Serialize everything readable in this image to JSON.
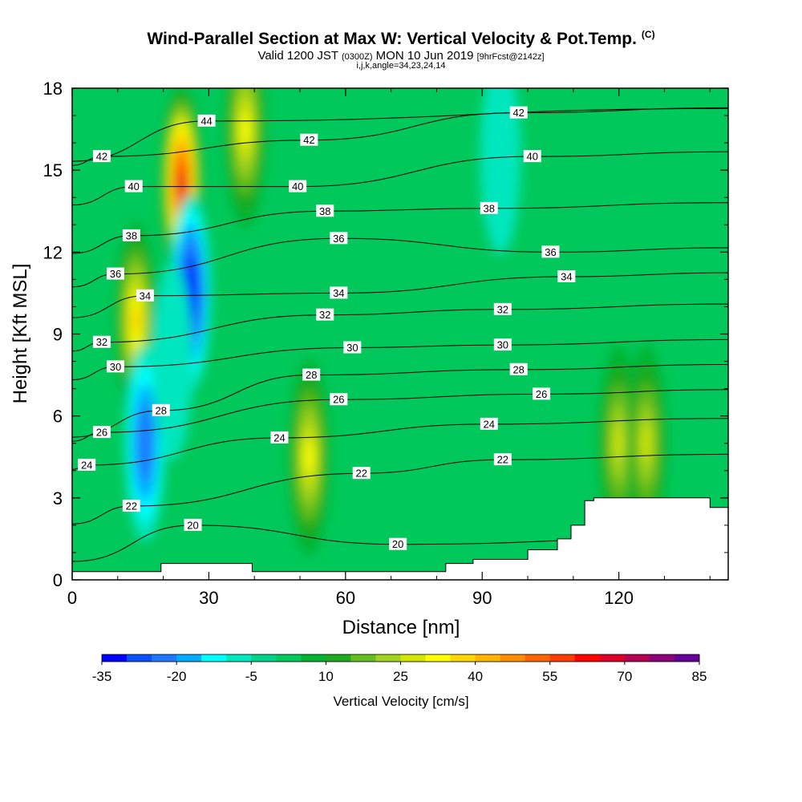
{
  "header": {
    "title": "Wind-Parallel Section at Max W: Vertical Velocity & Pot.Temp.",
    "copyright": "(C)",
    "valid_prefix": "Valid 1200 JST",
    "valid_z": "(0300Z)",
    "valid_date": "MON 10 Jun 2019",
    "forecast": "[9hrFcst@2142z]",
    "indices": "i,j,k,angle=34,23,24,14"
  },
  "chart_data": {
    "type": "heatmap",
    "xlabel": "Distance [nm]",
    "ylabel": "Height [Kft MSL]",
    "xlim": [
      0,
      144
    ],
    "ylim": [
      0,
      18
    ],
    "x_ticks": [
      "0",
      "30",
      "60",
      "90",
      "120"
    ],
    "y_ticks": [
      "0",
      "3",
      "6",
      "9",
      "12",
      "15",
      "18"
    ],
    "colorbar": {
      "label": "Vertical Velocity [cm/s]",
      "tick_labels": [
        "-35",
        "-20",
        "-5",
        "10",
        "25",
        "40",
        "55",
        "70",
        "85"
      ],
      "levels": [
        -35,
        -30,
        -25,
        -20,
        -15,
        -10,
        -5,
        0,
        5,
        10,
        15,
        20,
        25,
        30,
        35,
        40,
        45,
        50,
        55,
        60,
        65,
        70,
        75,
        80,
        85
      ],
      "colors": [
        "#0000ff",
        "#0a50ff",
        "#1e78ff",
        "#00aaff",
        "#00ffff",
        "#00e6be",
        "#00d28c",
        "#00c85a",
        "#00b432",
        "#1eaa1e",
        "#64be1e",
        "#a0d21e",
        "#d2e600",
        "#ffff00",
        "#ffd700",
        "#ffb400",
        "#ff8c00",
        "#ff6400",
        "#ff3c00",
        "#ff0000",
        "#dc0028",
        "#b40050",
        "#8c0078",
        "#640096"
      ]
    },
    "vertical_velocity_features": [
      {
        "kind": "updraft",
        "x": 24,
        "y": 14.5,
        "peak": 65
      },
      {
        "kind": "updraft",
        "x": 14,
        "y": 9.5,
        "peak": 35
      },
      {
        "kind": "updraft",
        "x": 38,
        "y": 16.5,
        "peak": 30
      },
      {
        "kind": "updraft",
        "x": 52,
        "y": 4.5,
        "peak": 30
      },
      {
        "kind": "updraft",
        "x": 120,
        "y": 5,
        "peak": 25
      },
      {
        "kind": "updraft",
        "x": 126,
        "y": 5,
        "peak": 25
      },
      {
        "kind": "downdraft",
        "x": 26,
        "y": 10.5,
        "peak": -35
      },
      {
        "kind": "downdraft",
        "x": 16,
        "y": 5,
        "peak": -25
      },
      {
        "kind": "downdraft",
        "x": 22,
        "y": 8,
        "peak": -10
      },
      {
        "kind": "downdraft",
        "x": 94,
        "y": 15.5,
        "peak": -10
      }
    ],
    "terrain": [
      [
        0,
        0.3
      ],
      [
        19.5,
        0.3
      ],
      [
        19.5,
        0.6
      ],
      [
        39.5,
        0.6
      ],
      [
        39.5,
        0.3
      ],
      [
        82,
        0.3
      ],
      [
        82,
        0.6
      ],
      [
        88,
        0.6
      ],
      [
        88,
        0.75
      ],
      [
        100,
        0.75
      ],
      [
        100,
        1.1
      ],
      [
        106.5,
        1.1
      ],
      [
        106.5,
        1.5
      ],
      [
        109.5,
        1.5
      ],
      [
        109.5,
        2.0
      ],
      [
        112.5,
        2.0
      ],
      [
        112.5,
        2.9
      ],
      [
        114.5,
        2.9
      ],
      [
        114.5,
        3.0
      ],
      [
        140,
        3.0
      ],
      [
        140,
        2.65
      ],
      [
        144,
        2.65
      ]
    ],
    "contour_interval": 2,
    "potential_temperature_levels": [
      20,
      22,
      24,
      26,
      28,
      30,
      32,
      34,
      36,
      38,
      40,
      42,
      44
    ],
    "potential_temperature_labels": [
      {
        "text": "44",
        "x": 29.5,
        "y": 16.8
      },
      {
        "text": "42",
        "x": 6.5,
        "y": 15.5
      },
      {
        "text": "42",
        "x": 52,
        "y": 16.1
      },
      {
        "text": "42",
        "x": 98,
        "y": 17.1
      },
      {
        "text": "40",
        "x": 13.5,
        "y": 14.4
      },
      {
        "text": "40",
        "x": 49.5,
        "y": 14.4
      },
      {
        "text": "40",
        "x": 101,
        "y": 15.5
      },
      {
        "text": "38",
        "x": 13,
        "y": 12.6
      },
      {
        "text": "38",
        "x": 55.5,
        "y": 13.5
      },
      {
        "text": "38",
        "x": 91.5,
        "y": 13.6
      },
      {
        "text": "36",
        "x": 9.5,
        "y": 11.2
      },
      {
        "text": "36",
        "x": 58.5,
        "y": 12.5
      },
      {
        "text": "36",
        "x": 105,
        "y": 12.0
      },
      {
        "text": "34",
        "x": 16,
        "y": 10.4
      },
      {
        "text": "34",
        "x": 58.5,
        "y": 10.5
      },
      {
        "text": "34",
        "x": 108.5,
        "y": 11.1
      },
      {
        "text": "32",
        "x": 6.5,
        "y": 8.7
      },
      {
        "text": "32",
        "x": 55.5,
        "y": 9.7
      },
      {
        "text": "32",
        "x": 94.5,
        "y": 9.9
      },
      {
        "text": "30",
        "x": 9.5,
        "y": 7.8
      },
      {
        "text": "30",
        "x": 61.5,
        "y": 8.5
      },
      {
        "text": "30",
        "x": 94.5,
        "y": 8.6
      },
      {
        "text": "28",
        "x": 19.5,
        "y": 6.2
      },
      {
        "text": "28",
        "x": 52.5,
        "y": 7.5
      },
      {
        "text": "28",
        "x": 98,
        "y": 7.7
      },
      {
        "text": "26",
        "x": 6.5,
        "y": 5.4
      },
      {
        "text": "26",
        "x": 58.5,
        "y": 6.6
      },
      {
        "text": "26",
        "x": 103,
        "y": 6.8
      },
      {
        "text": "24",
        "x": 3.2,
        "y": 4.2
      },
      {
        "text": "24",
        "x": 45.5,
        "y": 5.2
      },
      {
        "text": "24",
        "x": 91.5,
        "y": 5.7
      },
      {
        "text": "22",
        "x": 13,
        "y": 2.7
      },
      {
        "text": "22",
        "x": 63.5,
        "y": 3.9
      },
      {
        "text": "22",
        "x": 94.5,
        "y": 4.4
      },
      {
        "text": "20",
        "x": 26.5,
        "y": 2.0
      },
      {
        "text": "20",
        "x": 71.5,
        "y": 1.3
      }
    ]
  }
}
